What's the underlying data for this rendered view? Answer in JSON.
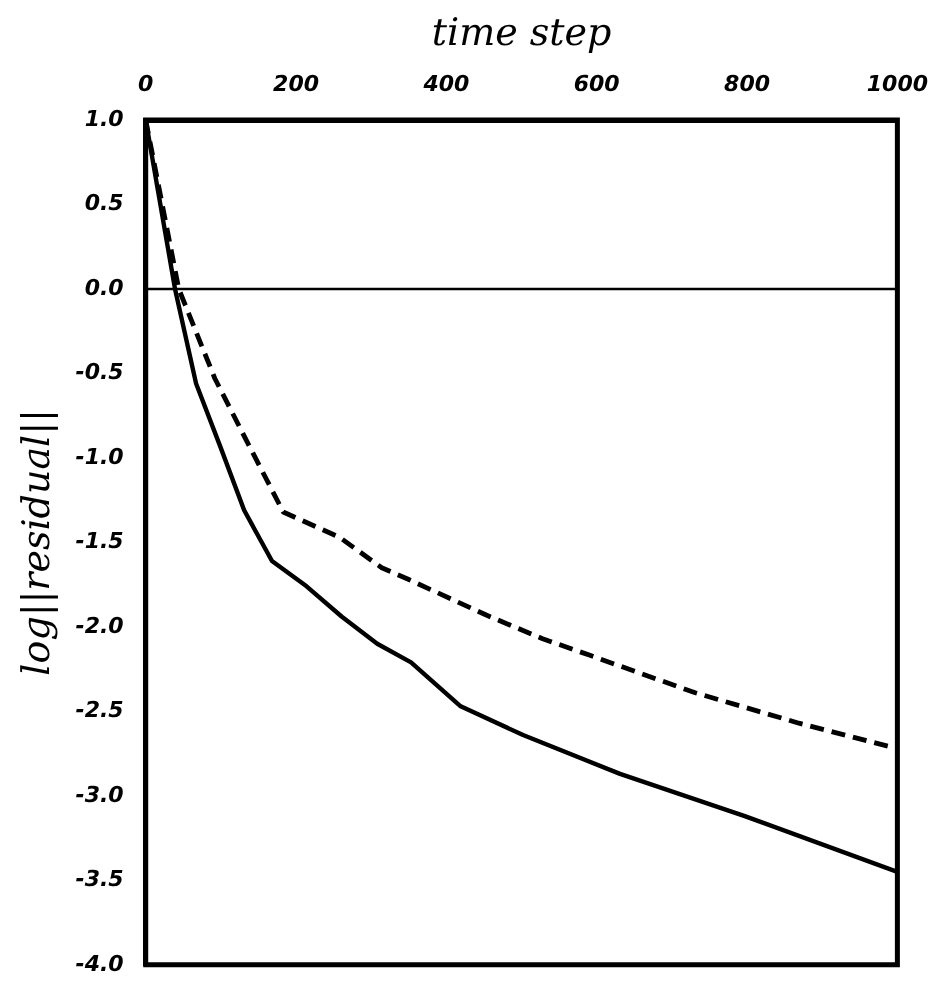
{
  "chart_data": {
    "type": "line",
    "xlabel": "time step",
    "ylabel": "log||residual||",
    "xlim": [
      0,
      1000
    ],
    "xticks": [
      0,
      200,
      400,
      600,
      800,
      1000
    ],
    "ylim": [
      -4,
      1
    ],
    "yticks": [
      {
        "value": 1,
        "label": "1.0"
      },
      {
        "value": 0.5,
        "label": "0.5"
      },
      {
        "value": 0,
        "label": "0.0"
      },
      {
        "value": -0.5,
        "label": "-0.5"
      },
      {
        "value": -1,
        "label": "-1.0"
      },
      {
        "value": -1.5,
        "label": "-1.5"
      },
      {
        "value": -2,
        "label": "-2.0"
      },
      {
        "value": -2.5,
        "label": "-2.5"
      },
      {
        "value": -3,
        "label": "-3.0"
      },
      {
        "value": -3.5,
        "label": "-3.5"
      },
      {
        "value": -4,
        "label": "-4.0"
      }
    ],
    "grid": false,
    "legend": false,
    "marker": "none",
    "ref_lines": [
      {
        "axis": "y",
        "value": 0,
        "color": "#000000"
      }
    ],
    "series": [
      {
        "color": "#000000",
        "line_style": "solid",
        "x": [
          0,
          39,
          67,
          99,
          131,
          168,
          214,
          261,
          308,
          353,
          419,
          502,
          631,
          797,
          1000
        ],
        "values": [
          1,
          0,
          -0.56,
          -0.93,
          -1.31,
          -1.61,
          -1.76,
          -1.94,
          -2.1,
          -2.21,
          -2.47,
          -2.64,
          -2.87,
          -3.12,
          -3.45
        ]
      },
      {
        "color": "#000000",
        "line_style": "dashed",
        "x": [
          0,
          44,
          92,
          139,
          183,
          258,
          314,
          350,
          453,
          528,
          592,
          731,
          869,
          1000
        ],
        "values": [
          1,
          0,
          -0.53,
          -0.94,
          -1.32,
          -1.47,
          -1.65,
          -1.72,
          -1.93,
          -2.07,
          -2.17,
          -2.39,
          -2.57,
          -2.72
        ]
      }
    ]
  }
}
